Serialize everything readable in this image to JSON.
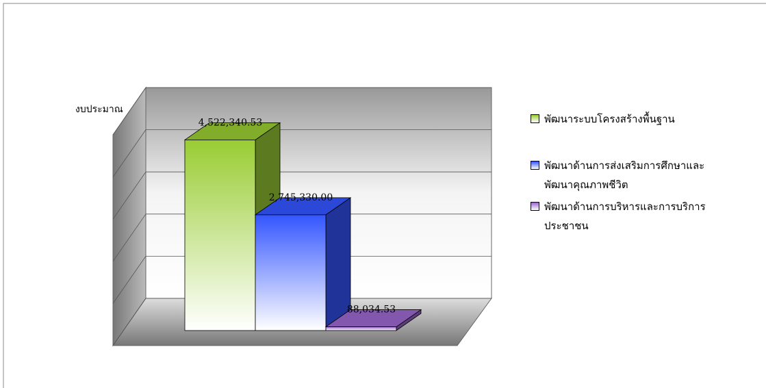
{
  "chart_data": {
    "type": "bar3d",
    "y_label": "งบประมาณ",
    "ylim": [
      0,
      5000000
    ],
    "yticks": [
      0,
      1000000,
      2000000,
      3000000,
      4000000,
      5000000
    ],
    "grid": true,
    "legend": "right",
    "series": [
      {
        "name": "พัฒนาระบบโครงสร้างพื้นฐาน",
        "color": "#99cc33",
        "values": [
          4522340.53
        ],
        "value_labels": [
          "4,522,340.53"
        ]
      },
      {
        "name": "พัฒนาด้านการส่งเสริมการศึกษาและพัฒนาคุณภาพชีวิต",
        "color": "#3355ff",
        "values": [
          2745330.0
        ],
        "value_labels": [
          "2,745,330.00"
        ]
      },
      {
        "name": "พัฒนาด้านการบริหารและการบริการประชาชน",
        "color": "#9966cc",
        "values": [
          88034.53
        ],
        "value_labels": [
          "88,034.53"
        ]
      }
    ]
  }
}
